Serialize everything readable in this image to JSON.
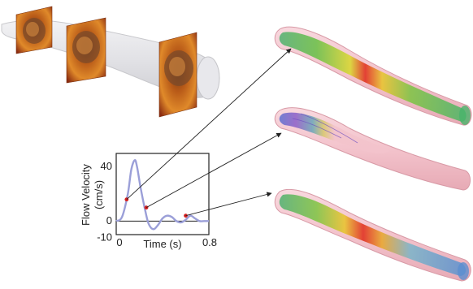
{
  "chart_data": {
    "type": "line",
    "ylabel": "Flow Velocity (cm/s)",
    "xlabel": "Time (s)",
    "xlim": [
      0,
      0.8
    ],
    "ylim": [
      -10,
      50
    ],
    "x_ticks": [
      "0",
      "0.8"
    ],
    "y_ticks": [
      "40",
      "0",
      "-10"
    ],
    "series": [
      {
        "x": [
          0,
          0.05,
          0.1,
          0.13,
          0.16,
          0.18,
          0.21,
          0.25,
          0.28,
          0.32,
          0.36,
          0.4,
          0.44,
          0.48,
          0.52,
          0.56,
          0.6,
          0.64,
          0.68,
          0.72,
          0.76,
          0.8
        ],
        "y": [
          0,
          3,
          20,
          38,
          45,
          40,
          25,
          8,
          -2,
          -6,
          -3,
          2,
          4,
          3,
          0,
          -1,
          1,
          4,
          2,
          0,
          0,
          0
        ]
      }
    ],
    "highlight_points": [
      {
        "x": 0.09,
        "y": 16
      },
      {
        "x": 0.26,
        "y": 10
      },
      {
        "x": 0.6,
        "y": 4
      }
    ],
    "colors": {
      "line": "#9b9fd8",
      "point": "#d62020",
      "axis": "#222222"
    }
  },
  "y_label_line1": "Flow Velocity",
  "y_label_line2": "(cm/s)",
  "colors": {
    "vessel_pink": "#f4c6cf",
    "vessel_gray": "#e3e3e6",
    "jet_red": "#e02a1a",
    "jet_yellow": "#e8d728",
    "jet_green": "#55b844",
    "jet_blue": "#4f7ecf",
    "mri_orange": "#d46a1c"
  }
}
